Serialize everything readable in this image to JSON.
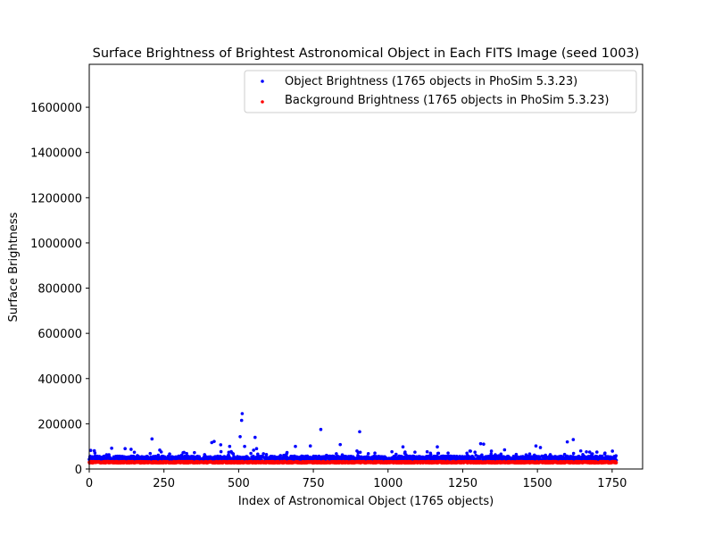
{
  "chart_data": {
    "type": "scatter",
    "title": "Surface Brightness of Brightest Astronomical Object in Each FITS Image (seed 1003)",
    "xlabel": "Index of Astronomical Object (1765 objects)",
    "ylabel": "Surface Brightness",
    "xlim": [
      0,
      1852
    ],
    "ylim": [
      0,
      1790000
    ],
    "x_ticks": [
      0,
      250,
      500,
      750,
      1000,
      1250,
      1500,
      1750
    ],
    "x_tick_labels": [
      "0",
      "250",
      "500",
      "750",
      "1000",
      "1250",
      "1500",
      "1750"
    ],
    "y_ticks": [
      0,
      200000,
      400000,
      600000,
      800000,
      1000000,
      1200000,
      1400000,
      1600000
    ],
    "y_tick_labels": [
      "0",
      "200000",
      "400000",
      "600000",
      "800000",
      "1000000",
      "1200000",
      "1400000",
      "1600000"
    ],
    "grid": false,
    "legend_position": "top-right",
    "point_count": 1765,
    "series": [
      {
        "name": "Object Brightness (1765 objects in PhoSim 5.3.23)",
        "color": "#0000ff",
        "baseline": 45000,
        "noise": 12000,
        "notable_points": [
          {
            "x": 75,
            "y": 92000
          },
          {
            "x": 120,
            "y": 90000
          },
          {
            "x": 140,
            "y": 87000
          },
          {
            "x": 210,
            "y": 133000
          },
          {
            "x": 410,
            "y": 117000
          },
          {
            "x": 418,
            "y": 122000
          },
          {
            "x": 440,
            "y": 107000
          },
          {
            "x": 470,
            "y": 100000
          },
          {
            "x": 505,
            "y": 143000
          },
          {
            "x": 510,
            "y": 215000
          },
          {
            "x": 512,
            "y": 245000
          },
          {
            "x": 520,
            "y": 100000
          },
          {
            "x": 555,
            "y": 140000
          },
          {
            "x": 560,
            "y": 90000
          },
          {
            "x": 690,
            "y": 100000
          },
          {
            "x": 740,
            "y": 102000
          },
          {
            "x": 775,
            "y": 175000
          },
          {
            "x": 840,
            "y": 108000
          },
          {
            "x": 905,
            "y": 165000
          },
          {
            "x": 1050,
            "y": 98000
          },
          {
            "x": 1165,
            "y": 98000
          },
          {
            "x": 1310,
            "y": 112000
          },
          {
            "x": 1320,
            "y": 110000
          },
          {
            "x": 1390,
            "y": 85000
          },
          {
            "x": 1495,
            "y": 102000
          },
          {
            "x": 1510,
            "y": 95000
          },
          {
            "x": 1600,
            "y": 120000
          },
          {
            "x": 1620,
            "y": 130000
          },
          {
            "x": 1645,
            "y": 80000
          }
        ]
      },
      {
        "name": "Background Brightness (1765 objects in PhoSim 5.3.23)",
        "color": "#ff0000",
        "baseline": 30000,
        "noise": 3500
      }
    ]
  }
}
